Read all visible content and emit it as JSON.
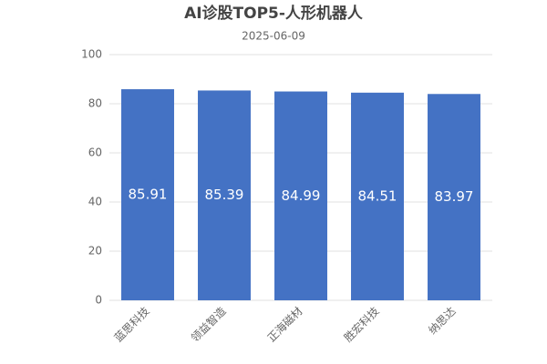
{
  "chart_data": {
    "type": "bar",
    "title": "AI诊股TOP5-人形机器人",
    "subtitle": "2025-06-09",
    "categories": [
      "蓝思科技",
      "领益智造",
      "正海磁材",
      "胜宏科技",
      "纳思达"
    ],
    "values": [
      85.91,
      85.39,
      84.99,
      84.51,
      83.97
    ],
    "color": "#4472c4",
    "ylim": [
      0,
      100
    ],
    "yticks": [
      0,
      20,
      40,
      60,
      80,
      100
    ],
    "grid": true
  }
}
